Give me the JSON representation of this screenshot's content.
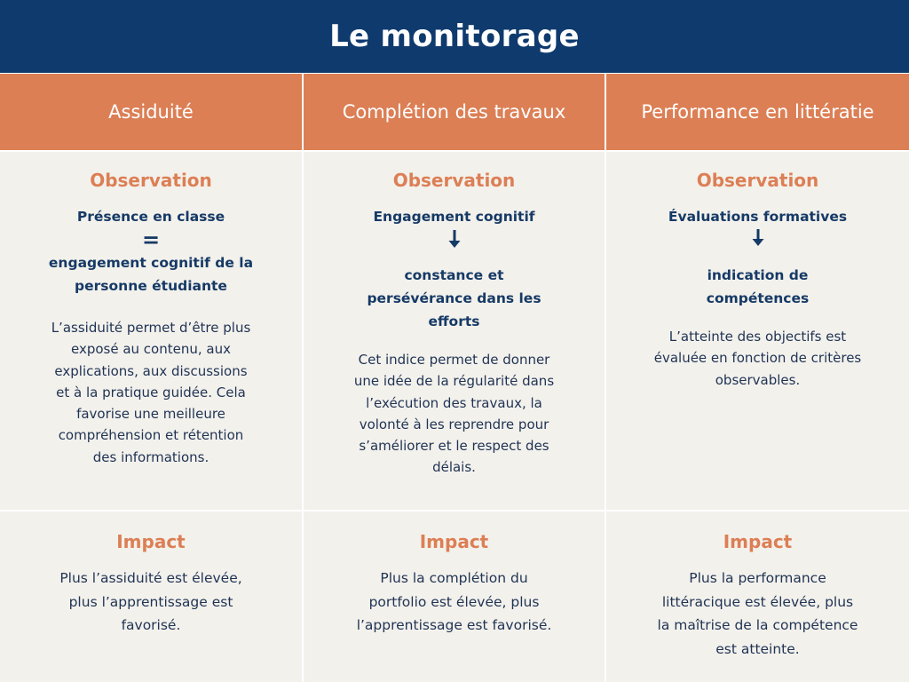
{
  "title": "Le monitorage",
  "columns": [
    {
      "header": "Assiduité",
      "observation": {
        "title": "Observation",
        "top_line": "Présence en classe",
        "connector": "=",
        "bottom_lines": [
          "engagement cognitif de la",
          "personne étudiante"
        ],
        "paragraph_lines": [
          "L’assiduité permet d’être plus",
          "exposé au contenu, aux",
          "explications, aux discussions",
          "et à la pratique guidée. Cela",
          "favorise une meilleure",
          "compréhension et rétention",
          "des informations."
        ]
      },
      "impact": {
        "title": "Impact",
        "paragraph_lines": [
          "Plus l’assiduité est élevée,",
          "plus l’apprentissage est",
          "favorisé."
        ]
      }
    },
    {
      "header": "Complétion des travaux",
      "observation": {
        "title": "Observation",
        "top_line": "Engagement cognitif",
        "connector": "arrow-down",
        "bottom_lines": [
          "constance et",
          "persévérance dans les",
          "efforts"
        ],
        "paragraph_lines": [
          "Cet indice permet de donner",
          "une idée de la régularité  dans",
          "l’exécution des  travaux, la",
          "volonté à les reprendre pour",
          "s’améliorer et le respect des",
          "délais."
        ]
      },
      "impact": {
        "title": "Impact",
        "paragraph_lines": [
          "Plus la complétion du",
          "portfolio est élevée, plus",
          "l’apprentissage est favorisé."
        ]
      }
    },
    {
      "header": "Performance en littératie",
      "observation": {
        "title": "Observation",
        "top_line": "Évaluations formatives",
        "connector": "arrow-down",
        "bottom_lines": [
          "indication de",
          "compétences"
        ],
        "paragraph_lines": [
          "L’atteinte des objectifs est",
          "évaluée en fonction de critères",
          "observables."
        ]
      },
      "impact": {
        "title": "Impact",
        "paragraph_lines": [
          "Plus la performance",
          "littéracique est élevée, plus",
          "la maîtrise de la compétence",
          "est atteinte."
        ]
      }
    }
  ],
  "colors": {
    "title_bar": "#0f3a6e",
    "header_orange": "#dc7f55",
    "cell_background": "#f3f1ec",
    "navy_text": "#163a66",
    "section_title": "#dc7f55"
  },
  "icons": {
    "connector_arrow": "arrow-down-icon",
    "connector_equals": "equals-sign"
  }
}
